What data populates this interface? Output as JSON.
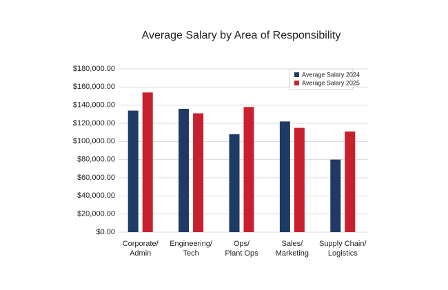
{
  "chart_data": {
    "type": "bar",
    "title": "Average Salary by Area of Responsibility",
    "categories": [
      [
        "Corporate/",
        "Admin"
      ],
      [
        "Engineering/",
        "Tech"
      ],
      [
        "Ops/",
        "Plant Ops"
      ],
      [
        "Sales/",
        "Marketing"
      ],
      [
        "Supply Chain/",
        "Logistics"
      ]
    ],
    "series": [
      {
        "name": "Average Salary 2024",
        "color": "#1f3a64",
        "values": [
          134000,
          136000,
          108000,
          122000,
          80000
        ]
      },
      {
        "name": "Average Salary 2025",
        "color": "#c8202e",
        "values": [
          154000,
          131000,
          138000,
          115000,
          111000
        ]
      }
    ],
    "ylim": [
      0,
      180000
    ],
    "yticks": [
      {
        "value": 0,
        "label": "$0.00"
      },
      {
        "value": 20000,
        "label": "$20,000.00"
      },
      {
        "value": 40000,
        "label": "$40,000.00"
      },
      {
        "value": 60000,
        "label": "$60,000.00"
      },
      {
        "value": 80000,
        "label": "$80,000.00"
      },
      {
        "value": 100000,
        "label": "$100,000.00"
      },
      {
        "value": 120000,
        "label": "$120,000.00"
      },
      {
        "value": 140000,
        "label": "$140,000.00"
      },
      {
        "value": 160000,
        "label": "$160,000.00"
      },
      {
        "value": 180000,
        "label": "$180,000.00"
      }
    ],
    "grid": true,
    "legend": "top-right"
  }
}
